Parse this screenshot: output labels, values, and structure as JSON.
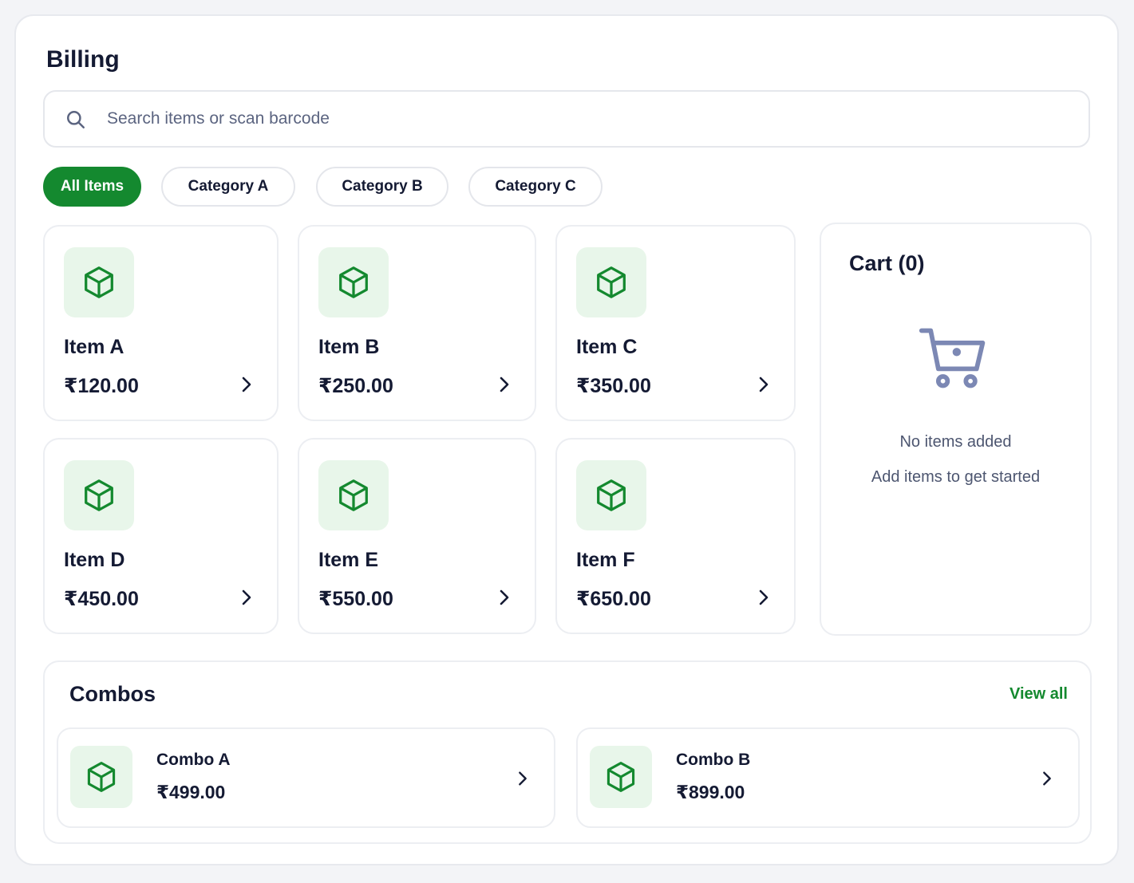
{
  "page": {
    "title": "Billing"
  },
  "search": {
    "placeholder": "Search items or scan barcode",
    "icon": "search-icon"
  },
  "categories": [
    {
      "label": "All Items",
      "active": true
    },
    {
      "label": "Category A",
      "active": false
    },
    {
      "label": "Category B",
      "active": false
    },
    {
      "label": "Category C",
      "active": false
    }
  ],
  "items": [
    {
      "name": "Item A",
      "price": "₹120.00",
      "icon": "box-icon"
    },
    {
      "name": "Item B",
      "price": "₹250.00",
      "icon": "box-icon"
    },
    {
      "name": "Item C",
      "price": "₹350.00",
      "icon": "box-icon"
    },
    {
      "name": "Item D",
      "price": "₹450.00",
      "icon": "box-icon"
    },
    {
      "name": "Item E",
      "price": "₹550.00",
      "icon": "box-icon"
    },
    {
      "name": "Item F",
      "price": "₹650.00",
      "icon": "box-icon"
    }
  ],
  "cart": {
    "title": "Cart (0)",
    "icon": "cart-icon",
    "empty_title": "No items added",
    "empty_subtitle": "Add items to get started"
  },
  "combos": {
    "title": "Combos",
    "view_all": "View all",
    "items": [
      {
        "name": "Combo A",
        "price": "₹499.00",
        "icon": "box-icon"
      },
      {
        "name": "Combo B",
        "price": "₹899.00",
        "icon": "box-icon"
      }
    ]
  },
  "colors": {
    "accent": "#14892f",
    "icon_bg": "#e8f6ea",
    "text": "#141a33",
    "muted": "#4d5670",
    "cart_icon": "#7c88b4"
  }
}
